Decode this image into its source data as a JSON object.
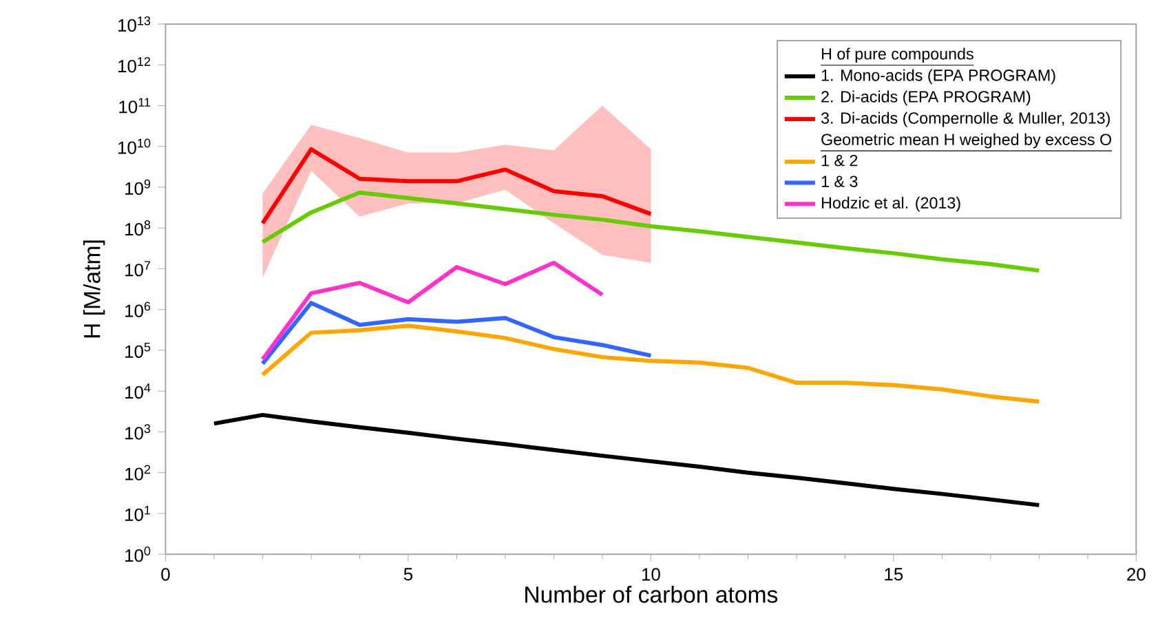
{
  "chart_data": {
    "type": "line",
    "xlabel": "Number of carbon atoms",
    "ylabel": "H [M/atm]",
    "legend_title": "H of pure compounds",
    "log": "y",
    "legend": "top right",
    "line_style": "solid",
    "xlim": [
      0,
      20
    ],
    "xticks": [
      0,
      5,
      10,
      15,
      20
    ],
    "ylim": [
      1,
      10000000000000.0
    ],
    "yticks": [
      {
        "value": 1,
        "label": "10$^{0}$"
      },
      {
        "value": 10,
        "label": "10$^{1}$"
      },
      {
        "value": 100,
        "label": "10$^{2}$"
      },
      {
        "value": 1000,
        "label": "10$^{3}$"
      },
      {
        "value": 10000.0,
        "label": "10$^{4}$"
      },
      {
        "value": 100000.0,
        "label": "10$^{5}$"
      },
      {
        "value": 1000000.0,
        "label": "10$^{6}$"
      },
      {
        "value": 10000000.0,
        "label": "10$^{7}$"
      },
      {
        "value": 100000000.0,
        "label": "10$^{8}$"
      },
      {
        "value": 1000000000.0,
        "label": "10$^{9}$"
      },
      {
        "value": 10000000000.0,
        "label": "10$^{10}$"
      },
      {
        "value": 100000000000.0,
        "label": "10$^{11}$"
      },
      {
        "value": 1000000000000.0,
        "label": "10$^{12}$"
      },
      {
        "value": 10000000000000.0,
        "label": "10$^{13}$"
      }
    ],
    "annotations": [
      "Geometric mean H weighed by excess O"
    ],
    "series": [
      {
        "name": "1. Mono-acids (EPA PROGRAM)",
        "color": "#000000",
        "x": [
          1,
          2,
          3,
          4,
          5,
          6,
          7,
          8,
          9,
          10,
          11,
          12,
          13,
          14,
          15,
          16,
          17,
          18
        ],
        "values": [
          1600,
          2600,
          1800,
          1300,
          950,
          680,
          500,
          360,
          260,
          190,
          140,
          100,
          75,
          55,
          40,
          30,
          22,
          16
        ]
      },
      {
        "name": "2. Di-acids (EPA PROGRAM)",
        "color": "#66cc00",
        "x": [
          2,
          3,
          4,
          5,
          6,
          7,
          8,
          9,
          10,
          11,
          12,
          13,
          14,
          15,
          16,
          17,
          18
        ],
        "values": [
          45000000.0,
          240000000.0,
          740000000.0,
          540000000.0,
          400000000.0,
          290000000.0,
          210000000.0,
          160000000.0,
          110000000.0,
          83000000.0,
          60000000.0,
          44000000.0,
          32000000.0,
          24000000.0,
          17000000.0,
          13000000.0,
          9000000.0
        ]
      },
      {
        "name": "3. Di-acids (Compernolle & Muller, 2013)",
        "color": "#ff0000",
        "x": [
          2,
          3,
          4,
          5,
          6,
          7,
          8,
          9,
          10
        ],
        "values": [
          130000000.0,
          8500000000.0,
          1600000000.0,
          1400000000.0,
          1400000000.0,
          2700000000.0,
          800000000.0,
          600000000.0,
          220000000.0
        ],
        "lower": [
          6000000.0,
          2500000000.0,
          190000000.0,
          400000000.0,
          400000000.0,
          870000000.0,
          130000000.0,
          22000000.0,
          14000000.0
        ],
        "upper": [
          700000000.0,
          34000000000.0,
          16000000000.0,
          7000000000.0,
          7000000000.0,
          11000000000.0,
          8000000000.0,
          100000000000.0,
          8500000000.0
        ]
      },
      {
        "name": "1 & 2",
        "color": "#ffa500",
        "x": [
          2,
          3,
          4,
          5,
          6,
          7,
          8,
          9,
          10,
          11,
          12,
          13,
          14,
          15,
          16,
          17,
          18
        ],
        "values": [
          25000.0,
          270000.0,
          310000.0,
          400000.0,
          290000.0,
          200000.0,
          107000.0,
          68000.0,
          55000.0,
          50000.0,
          37000.0,
          16000.0,
          16000.0,
          14000.0,
          11000.0,
          7400.0,
          5500.0
        ]
      },
      {
        "name": "1 & 3",
        "color": "#3366ff",
        "x": [
          2,
          3,
          4,
          5,
          6,
          7,
          8,
          9,
          10
        ],
        "values": [
          47000.0,
          1450000.0,
          420000.0,
          580000.0,
          500000.0,
          620000.0,
          210000.0,
          135000.0,
          74000.0
        ]
      },
      {
        "name": "Hodzic et al. (2013)",
        "color": "#ff33cc",
        "x": [
          2,
          3,
          4,
          5,
          6,
          7,
          8,
          9
        ],
        "values": [
          60000.0,
          2500000.0,
          4500000.0,
          1500000.0,
          11000000.0,
          4200000.0,
          14000000.0,
          2300000.0
        ]
      }
    ]
  }
}
